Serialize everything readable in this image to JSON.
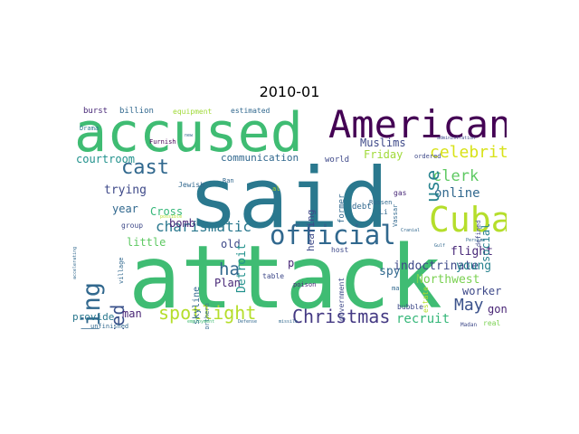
{
  "title": "2010-01",
  "colors": {
    "purple": "#482475",
    "teal": "#2a788e",
    "green": "#3fbc73",
    "lime": "#b5de2b",
    "blue": "#31688e",
    "dark": "#440154"
  },
  "words": [
    {
      "id": "said",
      "text": "said",
      "color": "#2a788e"
    },
    {
      "id": "attack",
      "text": "attack",
      "color": "#3fbc73"
    },
    {
      "id": "accused",
      "text": "accused",
      "color": "#3fbc73"
    },
    {
      "id": "american",
      "text": "American",
      "color": "#440154"
    },
    {
      "id": "cuba",
      "text": "Cuba",
      "color": "#b5de2b"
    },
    {
      "id": "official",
      "text": "official",
      "color": "#31688e"
    },
    {
      "id": "building",
      "text": "building",
      "color": "#31688e"
    },
    {
      "id": "attempted",
      "text": "attempted",
      "color": "#3b528b"
    },
    {
      "id": "christmas",
      "text": "Christmas",
      "color": "#443983"
    },
    {
      "id": "spotlight",
      "text": "spotlight",
      "color": "#b5de2b"
    },
    {
      "id": "cast",
      "text": "cast",
      "color": "#31688e"
    },
    {
      "id": "ha",
      "text": "ha",
      "color": "#31688e"
    },
    {
      "id": "charismatic",
      "text": "charismatic",
      "color": "#2a788e"
    },
    {
      "id": "celebrity",
      "text": "celebrity",
      "color": "#d8e219"
    },
    {
      "id": "clerk",
      "text": "clerk",
      "color": "#5ec962"
    },
    {
      "id": "online",
      "text": "online",
      "color": "#31688e"
    },
    {
      "id": "may",
      "text": "May",
      "color": "#3b528b"
    },
    {
      "id": "recruit",
      "text": "recruit",
      "color": "#35b779"
    },
    {
      "id": "muslims",
      "text": "Muslims",
      "color": "#3e4989"
    },
    {
      "id": "use",
      "text": "use",
      "color": "#26828e"
    },
    {
      "id": "courtroom",
      "text": "courtroom",
      "color": "#21918c"
    },
    {
      "id": "communication",
      "text": "communication",
      "color": "#31688e"
    },
    {
      "id": "friday",
      "text": "Friday",
      "color": "#a0da39"
    },
    {
      "id": "trying",
      "text": "trying",
      "color": "#3e4989"
    },
    {
      "id": "year",
      "text": "year",
      "color": "#31688e"
    },
    {
      "id": "bomb",
      "text": "bomb",
      "color": "#482878"
    },
    {
      "id": "cross",
      "text": "Cross",
      "color": "#35b779"
    },
    {
      "id": "little",
      "text": "little",
      "color": "#5ec962"
    },
    {
      "id": "old",
      "text": "old",
      "color": "#3e4989"
    },
    {
      "id": "detroit",
      "text": "Detroit",
      "color": "#21918c"
    },
    {
      "id": "indoctrinate",
      "text": "indoctrinate",
      "color": "#3e4989"
    },
    {
      "id": "flight",
      "text": "flight",
      "color": "#482878"
    },
    {
      "id": "young",
      "text": "young",
      "color": "#26828e"
    },
    {
      "id": "northwest",
      "text": "Northwest",
      "color": "#7ad151"
    },
    {
      "id": "worker",
      "text": "worker",
      "color": "#3e4989"
    },
    {
      "id": "gone",
      "text": "gone",
      "color": "#482475"
    },
    {
      "id": "spy",
      "text": "spy",
      "color": "#31688e"
    },
    {
      "id": "plan",
      "text": "Plan",
      "color": "#482878"
    },
    {
      "id": "man",
      "text": "man",
      "color": "#482475"
    },
    {
      "id": "provide",
      "text": "provide",
      "color": "#2a788e"
    },
    {
      "id": "social",
      "text": "social",
      "color": "#26828e"
    },
    {
      "id": "hearing",
      "text": "hearing",
      "color": "#3e4989"
    },
    {
      "id": "p",
      "text": "p",
      "color": "#482878"
    },
    {
      "id": "burst",
      "text": "burst",
      "color": "#482878"
    },
    {
      "id": "billion",
      "text": "billion",
      "color": "#31688e"
    },
    {
      "id": "equipment",
      "text": "equipment",
      "color": "#a0da39"
    },
    {
      "id": "estimated",
      "text": "estimated",
      "color": "#31688e"
    },
    {
      "id": "world",
      "text": "world",
      "color": "#3e4989"
    },
    {
      "id": "debt",
      "text": "debt",
      "color": "#31688e"
    },
    {
      "id": "host",
      "text": "host",
      "color": "#3e4989"
    },
    {
      "id": "table",
      "text": "table",
      "color": "#3e4989"
    },
    {
      "id": "poison",
      "text": "poison",
      "color": "#482878"
    },
    {
      "id": "skyline",
      "text": "skyline",
      "color": "#31688e"
    },
    {
      "id": "government",
      "text": "government",
      "color": "#3e4989"
    },
    {
      "id": "bubble",
      "text": "bubble",
      "color": "#3e4989"
    },
    {
      "id": "estate",
      "text": "estate",
      "color": "#b5de2b"
    },
    {
      "id": "real",
      "text": "real",
      "color": "#7ad151"
    },
    {
      "id": "madan",
      "text": "Madan",
      "color": "#3e4989"
    },
    {
      "id": "ma",
      "text": "ma",
      "color": "#31688e"
    },
    {
      "id": "jewish",
      "text": "Jewish",
      "color": "#31688e"
    },
    {
      "id": "furnish",
      "text": "Furnish",
      "color": "#440154"
    },
    {
      "id": "drama",
      "text": "Drama",
      "color": "#2a788e"
    },
    {
      "id": "unfinished",
      "text": "unfinished",
      "color": "#31688e"
    },
    {
      "id": "group",
      "text": "group",
      "color": "#3e4989"
    },
    {
      "id": "village",
      "text": "village",
      "color": "#31688e"
    },
    {
      "id": "northern",
      "text": "northern",
      "color": "#31688e"
    },
    {
      "id": "ran",
      "text": "Ran",
      "color": "#31688e"
    },
    {
      "id": "al",
      "text": "al",
      "color": "#b5de2b"
    },
    {
      "id": "former",
      "text": "former",
      "color": "#31688e"
    },
    {
      "id": "russen",
      "text": "Russen",
      "color": "#31688e"
    },
    {
      "id": "li",
      "text": "Li",
      "color": "#31688e"
    },
    {
      "id": "vassar",
      "text": "Vassar",
      "color": "#31688e"
    },
    {
      "id": "ordered",
      "text": "ordered",
      "color": "#3e4989"
    },
    {
      "id": "gas",
      "text": "gas",
      "color": "#482878"
    },
    {
      "id": "defined",
      "text": "defined",
      "color": "#3e4989"
    },
    {
      "id": "symbol",
      "text": "symbol",
      "color": "#31688e"
    },
    {
      "id": "administration",
      "text": "administration",
      "color": "#3e4989"
    },
    {
      "id": "new",
      "text": "new",
      "color": "#31688e"
    },
    {
      "id": "employment",
      "text": "employment",
      "color": "#3fbc73"
    },
    {
      "id": "defense",
      "text": "Defense",
      "color": "#31688e"
    },
    {
      "id": "missile",
      "text": "missile",
      "color": "#31688e"
    },
    {
      "id": "persian",
      "text": "Persian",
      "color": "#31688e"
    },
    {
      "id": "cranial",
      "text": "Cranial",
      "color": "#31688e"
    },
    {
      "id": "gulf",
      "text": "Gulf",
      "color": "#31688e"
    },
    {
      "id": "possible",
      "text": "possible",
      "color": "#b5de2b"
    },
    {
      "id": "accelerating",
      "text": "accelerating",
      "color": "#31688e"
    }
  ]
}
